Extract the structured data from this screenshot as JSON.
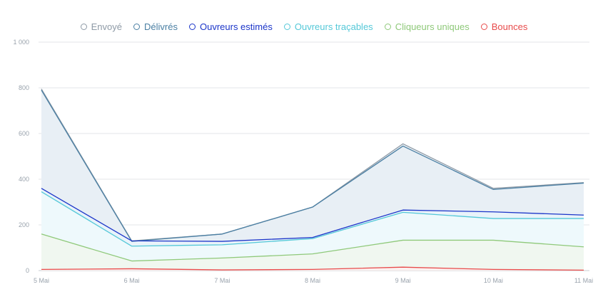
{
  "chart_data": {
    "type": "area",
    "title": "",
    "xlabel": "",
    "ylabel": "",
    "categories": [
      "5 Mai",
      "6 Mai",
      "7 Mai",
      "8 Mai",
      "9 Mai",
      "10 Mai",
      "11 Mai"
    ],
    "y_tick_labels": [
      "0",
      "200",
      "400",
      "600",
      "800",
      "1 000"
    ],
    "ylim": [
      0,
      1000
    ],
    "grid": true,
    "legend_position": "top-center",
    "series": [
      {
        "name": "Envoyé",
        "values": [
          795,
          130,
          160,
          278,
          555,
          360,
          385
        ],
        "color": "#8e9aa6",
        "fill": "#e7eef5"
      },
      {
        "name": "Délivrés",
        "values": [
          790,
          128,
          160,
          278,
          545,
          355,
          383
        ],
        "color": "#4a7fa3",
        "fill": "#e7eef5"
      },
      {
        "name": "Ouvreurs estimés",
        "values": [
          360,
          130,
          128,
          145,
          265,
          257,
          243
        ],
        "color": "#1b35c9",
        "fill": "#e9f3fa"
      },
      {
        "name": "Ouvreurs traçables",
        "values": [
          345,
          107,
          113,
          140,
          255,
          228,
          228
        ],
        "color": "#54c8d8",
        "fill": "#eef9fb"
      },
      {
        "name": "Cliqueurs uniques",
        "values": [
          160,
          42,
          55,
          73,
          133,
          133,
          104
        ],
        "color": "#8fc97a",
        "fill": "#f0f7ed"
      },
      {
        "name": "Bounces",
        "values": [
          5,
          8,
          3,
          5,
          15,
          5,
          2
        ],
        "color": "#e84b4b",
        "fill": "#fdeeee"
      }
    ]
  }
}
